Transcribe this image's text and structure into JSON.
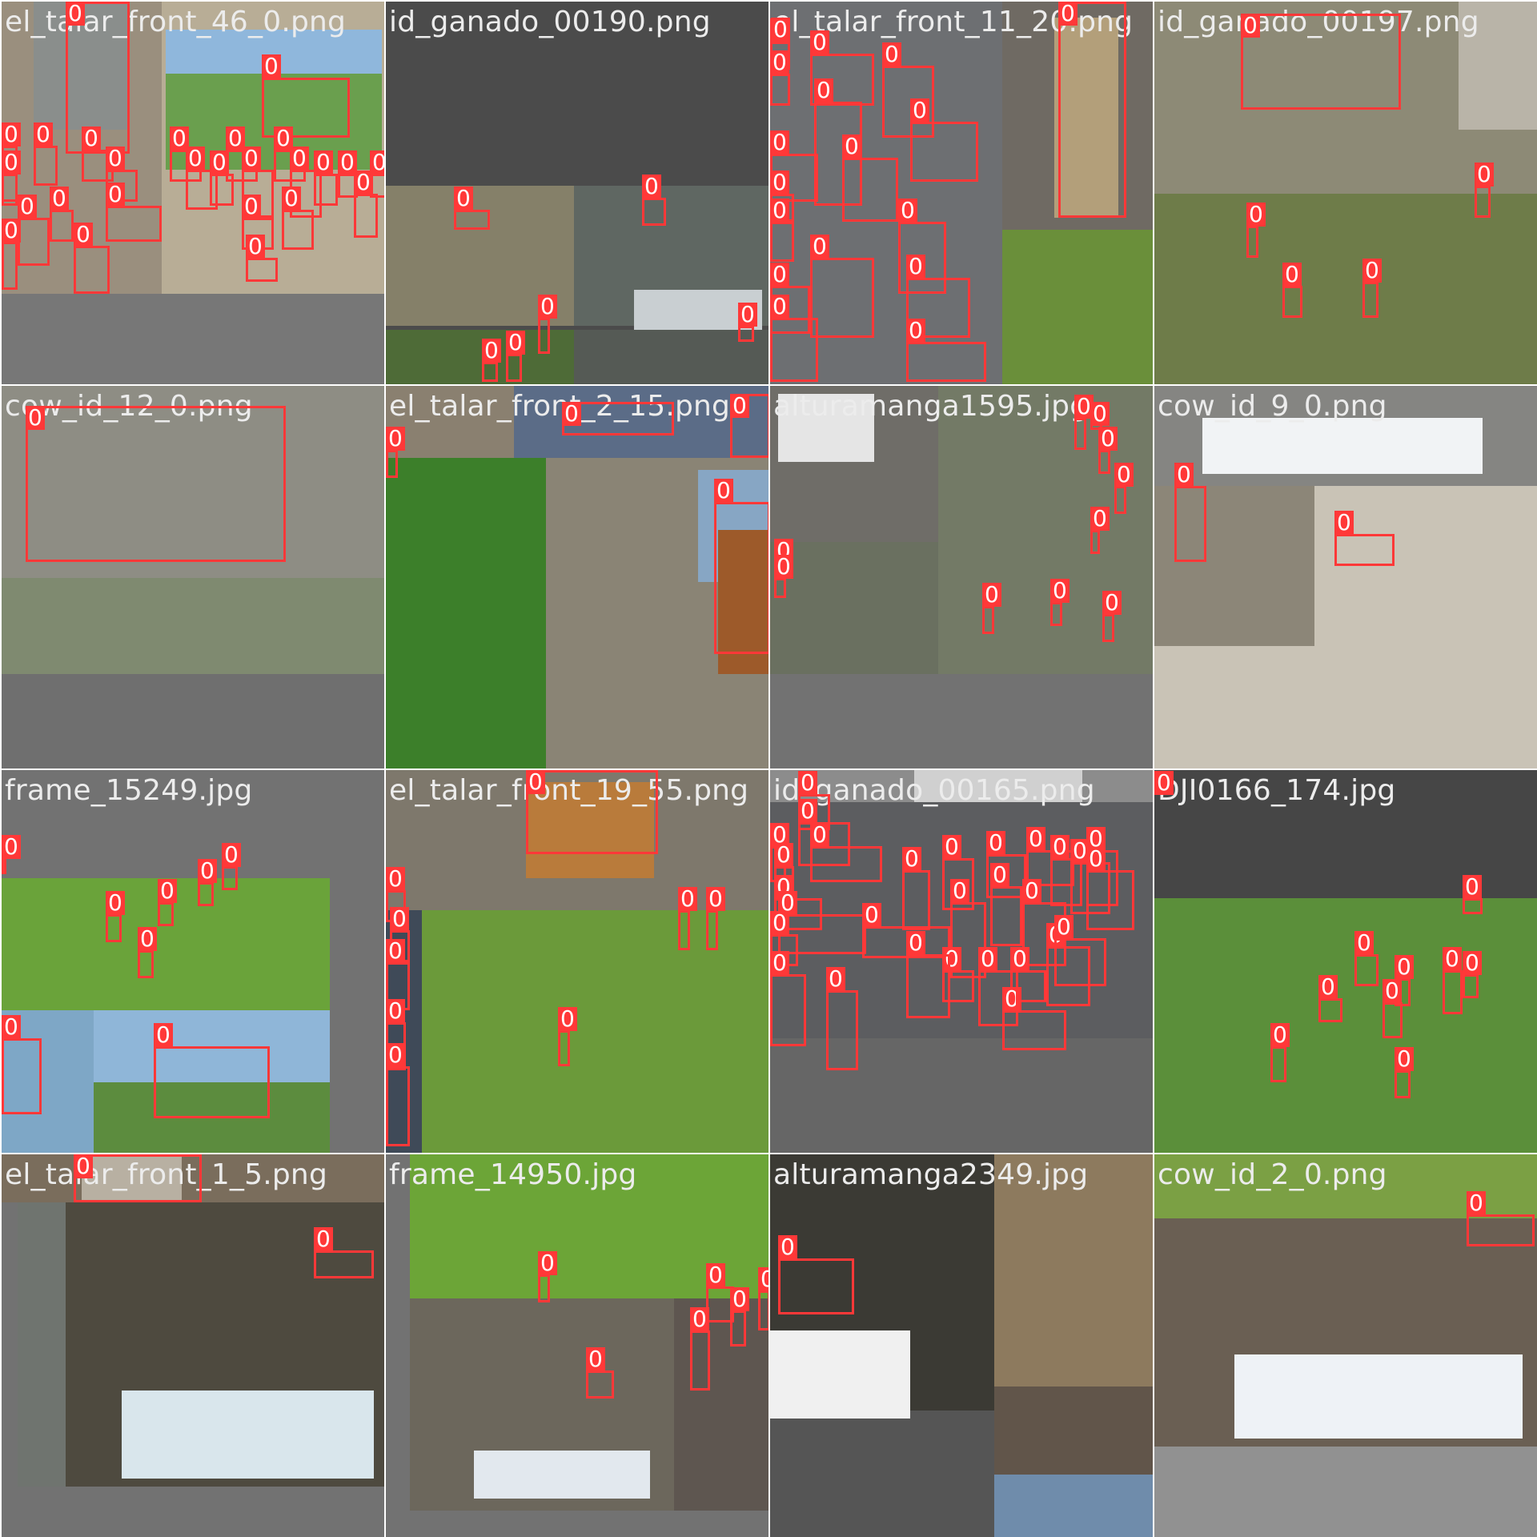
{
  "label_text": "0",
  "box_color": "#ff3838",
  "tiles": [
    {
      "title": "el_talar_front_46_0.png",
      "bg": "#777777",
      "scenes": [
        [
          0,
          0,
          200,
          365,
          "#9a8f7e"
        ],
        [
          200,
          0,
          278,
          365,
          "#b8ad96"
        ],
        [
          40,
          0,
          120,
          160,
          "#8a8e8c"
        ],
        [
          205,
          35,
          270,
          60,
          "#8fb7dc"
        ],
        [
          205,
          90,
          270,
          120,
          "#6a9f4e"
        ]
      ],
      "boxes": [
        [
          80,
          0,
          80,
          190
        ],
        [
          325,
          95,
          110,
          75
        ],
        [
          0,
          180,
          20,
          70
        ],
        [
          40,
          180,
          30,
          50
        ],
        [
          100,
          185,
          40,
          40
        ],
        [
          0,
          215,
          20,
          40
        ],
        [
          20,
          270,
          40,
          60
        ],
        [
          0,
          300,
          20,
          60
        ],
        [
          60,
          260,
          30,
          40
        ],
        [
          90,
          305,
          45,
          60
        ],
        [
          130,
          210,
          40,
          40
        ],
        [
          130,
          255,
          70,
          45
        ],
        [
          210,
          185,
          40,
          40
        ],
        [
          230,
          210,
          40,
          50
        ],
        [
          260,
          215,
          30,
          40
        ],
        [
          280,
          185,
          40,
          40
        ],
        [
          300,
          210,
          40,
          60
        ],
        [
          340,
          185,
          40,
          40
        ],
        [
          360,
          210,
          40,
          60
        ],
        [
          390,
          215,
          30,
          40
        ],
        [
          420,
          215,
          25,
          30
        ],
        [
          460,
          215,
          25,
          30
        ],
        [
          300,
          270,
          40,
          40
        ],
        [
          350,
          260,
          40,
          50
        ],
        [
          305,
          320,
          40,
          30
        ],
        [
          440,
          240,
          30,
          55
        ],
        [
          480,
          210,
          10,
          20
        ]
      ]
    },
    {
      "title": "id_ganado_00190.png",
      "bg": "#4b4b4b",
      "scenes": [
        [
          0,
          230,
          235,
          175,
          "#858069"
        ],
        [
          235,
          230,
          243,
          175,
          "#5f6762"
        ],
        [
          0,
          410,
          235,
          68,
          "#4e6b37"
        ],
        [
          235,
          410,
          243,
          68,
          "#555a55"
        ],
        [
          310,
          360,
          160,
          50,
          "#c9cfd2"
        ]
      ],
      "boxes": [
        [
          85,
          260,
          45,
          25
        ],
        [
          320,
          245,
          30,
          35
        ],
        [
          190,
          395,
          15,
          45
        ],
        [
          150,
          440,
          20,
          35
        ],
        [
          120,
          450,
          20,
          25
        ],
        [
          440,
          405,
          20,
          20
        ]
      ]
    },
    {
      "title": "el_talar_front_11_20.png",
      "bg": "#6b6b6b",
      "scenes": [
        [
          0,
          0,
          290,
          478,
          "#6d6f72"
        ],
        [
          290,
          0,
          188,
          285,
          "#6f6a63"
        ],
        [
          290,
          285,
          188,
          193,
          "#6a8f3a"
        ],
        [
          355,
          20,
          80,
          250,
          "#b39f7a"
        ]
      ],
      "boxes": [
        [
          0,
          50,
          25,
          35
        ],
        [
          0,
          90,
          25,
          40
        ],
        [
          50,
          65,
          80,
          65
        ],
        [
          140,
          80,
          65,
          90
        ],
        [
          175,
          150,
          85,
          75
        ],
        [
          55,
          125,
          60,
          130
        ],
        [
          90,
          195,
          70,
          80
        ],
        [
          0,
          190,
          60,
          60
        ],
        [
          0,
          240,
          30,
          35
        ],
        [
          0,
          275,
          30,
          50
        ],
        [
          160,
          275,
          60,
          90
        ],
        [
          170,
          345,
          80,
          75
        ],
        [
          50,
          320,
          80,
          100
        ],
        [
          0,
          355,
          50,
          60
        ],
        [
          0,
          395,
          60,
          80
        ],
        [
          170,
          425,
          100,
          50
        ],
        [
          360,
          0,
          85,
          270
        ],
        [
          1,
          20,
          22,
          30
        ]
      ]
    },
    {
      "title": "id_ganado_00197.png",
      "bg": "#5d5f57",
      "scenes": [
        [
          0,
          0,
          478,
          240,
          "#8d8a76"
        ],
        [
          0,
          240,
          478,
          238,
          "#6e7c49"
        ],
        [
          380,
          0,
          98,
          160,
          "#b9b4a8"
        ]
      ],
      "boxes": [
        [
          108,
          15,
          200,
          120
        ],
        [
          400,
          230,
          20,
          40
        ],
        [
          115,
          280,
          15,
          40
        ],
        [
          160,
          355,
          25,
          40
        ],
        [
          260,
          350,
          20,
          45
        ]
      ]
    },
    {
      "title": "cow_id_12_0.png",
      "bg": "#707070",
      "scenes": [
        [
          0,
          0,
          478,
          240,
          "#8e8d84"
        ],
        [
          0,
          240,
          478,
          120,
          "#7f8a70"
        ],
        [
          0,
          360,
          478,
          118,
          "#6f6f6f"
        ]
      ],
      "boxes": [
        [
          30,
          25,
          325,
          195
        ]
      ]
    },
    {
      "title": "el_talar_front_2_15.png",
      "bg": "#505050",
      "scenes": [
        [
          0,
          90,
          200,
          388,
          "#3c7f2a"
        ],
        [
          200,
          90,
          278,
          388,
          "#8a8475"
        ],
        [
          390,
          105,
          88,
          140,
          "#87a6c4"
        ],
        [
          415,
          180,
          63,
          180,
          "#9d5a2a"
        ],
        [
          160,
          0,
          318,
          90,
          "#5b6c87"
        ],
        [
          0,
          0,
          160,
          90,
          "#8a8070"
        ]
      ],
      "boxes": [
        [
          410,
          145,
          70,
          190
        ],
        [
          0,
          80,
          15,
          35
        ],
        [
          220,
          20,
          140,
          42
        ],
        [
          430,
          10,
          50,
          80
        ]
      ]
    },
    {
      "title": "alturamanga1595.jpg",
      "bg": "#727272",
      "scenes": [
        [
          0,
          0,
          210,
          195,
          "#6f6d68"
        ],
        [
          210,
          0,
          268,
          360,
          "#737a66"
        ],
        [
          0,
          195,
          210,
          165,
          "#6a7060"
        ],
        [
          10,
          10,
          120,
          85,
          "#e5e5e5"
        ]
      ],
      "boxes": [
        [
          380,
          40,
          15,
          40
        ],
        [
          400,
          20,
          15,
          35
        ],
        [
          410,
          80,
          15,
          30
        ],
        [
          430,
          125,
          15,
          35
        ],
        [
          400,
          180,
          12,
          30
        ],
        [
          265,
          275,
          15,
          35
        ],
        [
          350,
          270,
          15,
          30
        ],
        [
          415,
          285,
          15,
          35
        ],
        [
          5,
          220,
          20,
          20
        ],
        [
          5,
          240,
          15,
          25
        ]
      ]
    },
    {
      "title": "cow_id_9_0.png",
      "bg": "#b8b2a6",
      "scenes": [
        [
          0,
          0,
          478,
          125,
          "#858582"
        ],
        [
          60,
          40,
          350,
          70,
          "#f1f3f5"
        ],
        [
          0,
          125,
          478,
          353,
          "#c9c3b6"
        ],
        [
          0,
          125,
          200,
          200,
          "#8c8678"
        ]
      ],
      "boxes": [
        [
          25,
          125,
          40,
          95
        ],
        [
          225,
          185,
          75,
          40
        ]
      ]
    },
    {
      "title": "frame_15249.jpg",
      "bg": "#727272",
      "scenes": [
        [
          0,
          135,
          410,
          165,
          "#6aa33a"
        ],
        [
          0,
          300,
          410,
          178,
          "#8fb6d8"
        ],
        [
          0,
          390,
          410,
          88,
          "#5c8c3e"
        ],
        [
          0,
          300,
          115,
          178,
          "#7ea7c6"
        ]
      ],
      "boxes": [
        [
          0,
          110,
          5,
          20
        ],
        [
          130,
          180,
          20,
          35
        ],
        [
          170,
          225,
          20,
          35
        ],
        [
          195,
          165,
          20,
          30
        ],
        [
          245,
          140,
          20,
          30
        ],
        [
          275,
          120,
          20,
          30
        ],
        [
          0,
          335,
          50,
          95
        ],
        [
          190,
          345,
          145,
          90
        ]
      ]
    },
    {
      "title": "el_talar_front_19_55.png",
      "bg": "#555555",
      "scenes": [
        [
          0,
          0,
          478,
          175,
          "#7e786c"
        ],
        [
          45,
          175,
          433,
          303,
          "#6b9a3a"
        ],
        [
          0,
          175,
          45,
          303,
          "#3f4a58"
        ],
        [
          175,
          15,
          160,
          120,
          "#b97b3b"
        ]
      ],
      "boxes": [
        [
          175,
          0,
          165,
          105
        ],
        [
          0,
          150,
          25,
          40
        ],
        [
          5,
          200,
          25,
          40
        ],
        [
          0,
          240,
          30,
          60
        ],
        [
          0,
          315,
          25,
          60
        ],
        [
          0,
          370,
          30,
          100
        ],
        [
          365,
          175,
          15,
          50
        ],
        [
          400,
          175,
          15,
          50
        ],
        [
          215,
          325,
          15,
          45
        ]
      ]
    },
    {
      "title": "id_ganado_00165.png",
      "bg": "#666666",
      "scenes": [
        [
          0,
          40,
          478,
          295,
          "#5c5d60"
        ],
        [
          0,
          0,
          478,
          40,
          "#8c8c8c"
        ],
        [
          180,
          0,
          210,
          40,
          "#d0d0d0"
        ]
      ],
      "boxes": [
        [
          35,
          30,
          40,
          45
        ],
        [
          35,
          65,
          65,
          55
        ],
        [
          50,
          95,
          90,
          45
        ],
        [
          0,
          95,
          20,
          45
        ],
        [
          5,
          120,
          25,
          60
        ],
        [
          5,
          160,
          60,
          40
        ],
        [
          10,
          180,
          110,
          50
        ],
        [
          0,
          205,
          35,
          40
        ],
        [
          115,
          195,
          110,
          40
        ],
        [
          165,
          125,
          35,
          75
        ],
        [
          215,
          110,
          40,
          65
        ],
        [
          225,
          165,
          45,
          95
        ],
        [
          270,
          105,
          50,
          55
        ],
        [
          275,
          145,
          40,
          75
        ],
        [
          320,
          100,
          60,
          45
        ],
        [
          315,
          165,
          55,
          80
        ],
        [
          350,
          110,
          40,
          60
        ],
        [
          345,
          220,
          55,
          75
        ],
        [
          375,
          115,
          50,
          65
        ],
        [
          395,
          100,
          40,
          70
        ],
        [
          395,
          125,
          60,
          75
        ],
        [
          355,
          210,
          65,
          60
        ],
        [
          300,
          250,
          45,
          40
        ],
        [
          290,
          300,
          80,
          50
        ],
        [
          215,
          250,
          40,
          40
        ],
        [
          170,
          230,
          55,
          80
        ],
        [
          260,
          250,
          50,
          70
        ],
        [
          70,
          275,
          40,
          100
        ],
        [
          0,
          255,
          45,
          90
        ]
      ]
    },
    {
      "title": "DJI0166_174.jpg",
      "bg": "#464646",
      "scenes": [
        [
          0,
          160,
          478,
          318,
          "#5b8f3a"
        ]
      ],
      "boxes": [
        [
          385,
          160,
          25,
          20
        ],
        [
          250,
          230,
          30,
          40
        ],
        [
          205,
          285,
          30,
          30
        ],
        [
          300,
          260,
          20,
          35
        ],
        [
          360,
          250,
          25,
          55
        ],
        [
          285,
          290,
          25,
          45
        ],
        [
          145,
          345,
          20,
          45
        ],
        [
          300,
          375,
          20,
          35
        ],
        [
          385,
          255,
          20,
          30
        ],
        [
          0,
          1,
          5,
          20
        ]
      ]
    },
    {
      "title": "el_talar_front_1_5.png",
      "bg": "#727272",
      "scenes": [
        [
          0,
          0,
          478,
          60,
          "#7a6d5c"
        ],
        [
          20,
          60,
          458,
          355,
          "#4e4a3f"
        ],
        [
          20,
          60,
          60,
          355,
          "#6f746f"
        ],
        [
          150,
          295,
          315,
          110,
          "#d9e6ec"
        ],
        [
          100,
          0,
          125,
          60,
          "#b8b0a2"
        ]
      ],
      "boxes": [
        [
          90,
          0,
          160,
          60
        ],
        [
          390,
          120,
          75,
          35
        ]
      ]
    },
    {
      "title": "frame_14950.jpg",
      "bg": "#727272",
      "scenes": [
        [
          30,
          0,
          448,
          180,
          "#6ca537"
        ],
        [
          30,
          180,
          330,
          265,
          "#6c675c"
        ],
        [
          360,
          180,
          118,
          265,
          "#5e5650"
        ],
        [
          110,
          370,
          220,
          60,
          "#e2e8ee"
        ]
      ],
      "boxes": [
        [
          190,
          150,
          15,
          35
        ],
        [
          250,
          270,
          35,
          35
        ],
        [
          400,
          165,
          35,
          45
        ],
        [
          430,
          195,
          20,
          45
        ],
        [
          380,
          220,
          25,
          75
        ],
        [
          465,
          170,
          15,
          50
        ]
      ]
    },
    {
      "title": "alturamanga2349.jpg",
      "bg": "#555555",
      "scenes": [
        [
          0,
          0,
          280,
          320,
          "#3b3a34"
        ],
        [
          280,
          0,
          198,
          290,
          "#8d7a5e"
        ],
        [
          280,
          290,
          198,
          188,
          "#61554a"
        ],
        [
          0,
          220,
          175,
          110,
          "#f0f0f0"
        ],
        [
          280,
          400,
          198,
          78,
          "#6f8cab"
        ]
      ],
      "boxes": [
        [
          10,
          130,
          95,
          70
        ]
      ]
    },
    {
      "title": "cow_id_2_0.png",
      "bg": "#7a7a7a",
      "scenes": [
        [
          0,
          0,
          478,
          365,
          "#6a5f53"
        ],
        [
          0,
          0,
          478,
          80,
          "#7ba044"
        ],
        [
          100,
          250,
          360,
          105,
          "#eef2f6"
        ],
        [
          0,
          365,
          478,
          113,
          "#919191"
        ]
      ],
      "boxes": [
        [
          390,
          75,
          85,
          40
        ]
      ]
    }
  ]
}
